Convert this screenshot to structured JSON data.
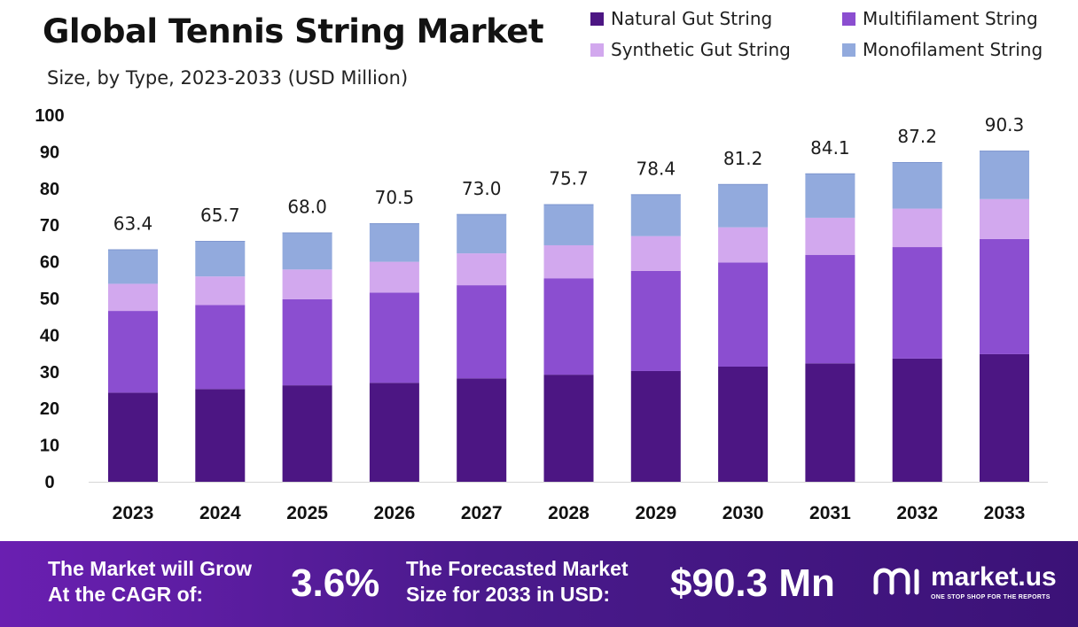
{
  "header": {
    "title": "Global Tennis String Market",
    "subtitle": "Size, by Type, 2023-2033 (USD Million)"
  },
  "legend": [
    {
      "label": "Natural Gut String",
      "color": "#4c1683"
    },
    {
      "label": "Multifilament String",
      "color": "#8b4ed0"
    },
    {
      "label": "Synthetic Gut String",
      "color": "#d2a8ee"
    },
    {
      "label": "Monofilament String",
      "color": "#92aadd"
    }
  ],
  "chart_data": {
    "type": "bar",
    "stacked": true,
    "categories": [
      "2023",
      "2024",
      "2025",
      "2026",
      "2027",
      "2028",
      "2029",
      "2030",
      "2031",
      "2032",
      "2033"
    ],
    "series": [
      {
        "name": "Natural Gut String",
        "color": "#4c1683",
        "values": [
          24.3,
          25.3,
          26.3,
          27.0,
          28.2,
          29.2,
          30.2,
          31.4,
          32.3,
          33.6,
          34.8
        ]
      },
      {
        "name": "Multifilament String",
        "color": "#8b4ed0",
        "values": [
          22.3,
          22.9,
          23.5,
          24.6,
          25.4,
          26.3,
          27.3,
          28.4,
          29.6,
          30.4,
          31.4
        ]
      },
      {
        "name": "Synthetic Gut String",
        "color": "#d2a8ee",
        "values": [
          7.4,
          7.8,
          8.1,
          8.4,
          8.7,
          9.0,
          9.5,
          9.6,
          10.1,
          10.5,
          10.9
        ]
      },
      {
        "name": "Monofilament String",
        "color": "#92aadd",
        "values": [
          9.4,
          9.7,
          10.1,
          10.5,
          10.7,
          11.2,
          11.4,
          11.8,
          12.1,
          12.7,
          13.2
        ]
      }
    ],
    "totals": [
      "63.4",
      "65.7",
      "68.0",
      "70.5",
      "73.0",
      "75.7",
      "78.4",
      "81.2",
      "84.1",
      "87.2",
      "90.3"
    ],
    "ylim": [
      0,
      100
    ],
    "yticks": [
      0,
      10,
      20,
      30,
      40,
      50,
      60,
      70,
      80,
      90,
      100
    ],
    "grid": false,
    "xlabel": "",
    "ylabel": "",
    "legend_position": "top-right"
  },
  "footer": {
    "cagr_label": "The Market will Grow\nAt the CAGR of:",
    "cagr_value": "3.6%",
    "forecast_label": "The Forecasted Market\nSize for 2033 in USD:",
    "forecast_value": "$90.3 Mn",
    "brand_name": "market.us",
    "brand_tagline": "ONE STOP SHOP FOR THE REPORTS"
  }
}
